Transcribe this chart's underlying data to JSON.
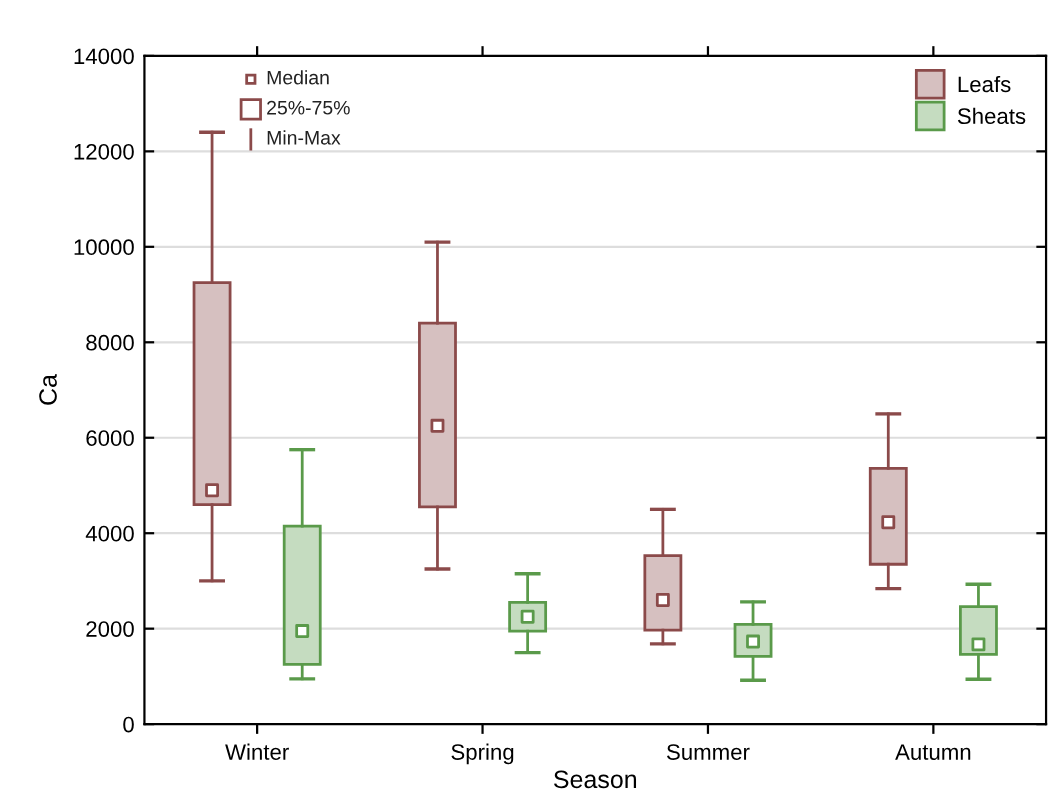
{
  "chart_data": {
    "type": "box",
    "xlabel": "Season",
    "ylabel": "Ca",
    "categories": [
      "Winter",
      "Spring",
      "Summer",
      "Autumn"
    ],
    "series": [
      {
        "name": "Leafs",
        "color": "#8b4a4a",
        "boxes": [
          {
            "low": 3000,
            "q1": 4600,
            "median": 4900,
            "q3": 9250,
            "high": 12400
          },
          {
            "low": 3250,
            "q1": 4550,
            "median": 6250,
            "q3": 8400,
            "high": 10100
          },
          {
            "low": 1680,
            "q1": 1970,
            "median": 2600,
            "q3": 3530,
            "high": 4500
          },
          {
            "low": 2840,
            "q1": 3350,
            "median": 4230,
            "q3": 5360,
            "high": 6500
          }
        ]
      },
      {
        "name": "Sheats",
        "color": "#5a9a4a",
        "boxes": [
          {
            "low": 950,
            "q1": 1250,
            "median": 1950,
            "q3": 4150,
            "high": 5750
          },
          {
            "low": 1500,
            "q1": 1950,
            "median": 2250,
            "q3": 2550,
            "high": 3150
          },
          {
            "low": 920,
            "q1": 1420,
            "median": 1730,
            "q3": 2090,
            "high": 2560
          },
          {
            "low": 940,
            "q1": 1460,
            "median": 1670,
            "q3": 2460,
            "high": 2930
          }
        ]
      }
    ],
    "annotations": [
      "Median",
      "25%-75%",
      "Min-Max"
    ],
    "ylim": [
      0,
      14000
    ],
    "yticks": [
      0,
      2000,
      4000,
      6000,
      8000,
      10000,
      12000,
      14000
    ],
    "grid": "y",
    "legend": "top right"
  }
}
